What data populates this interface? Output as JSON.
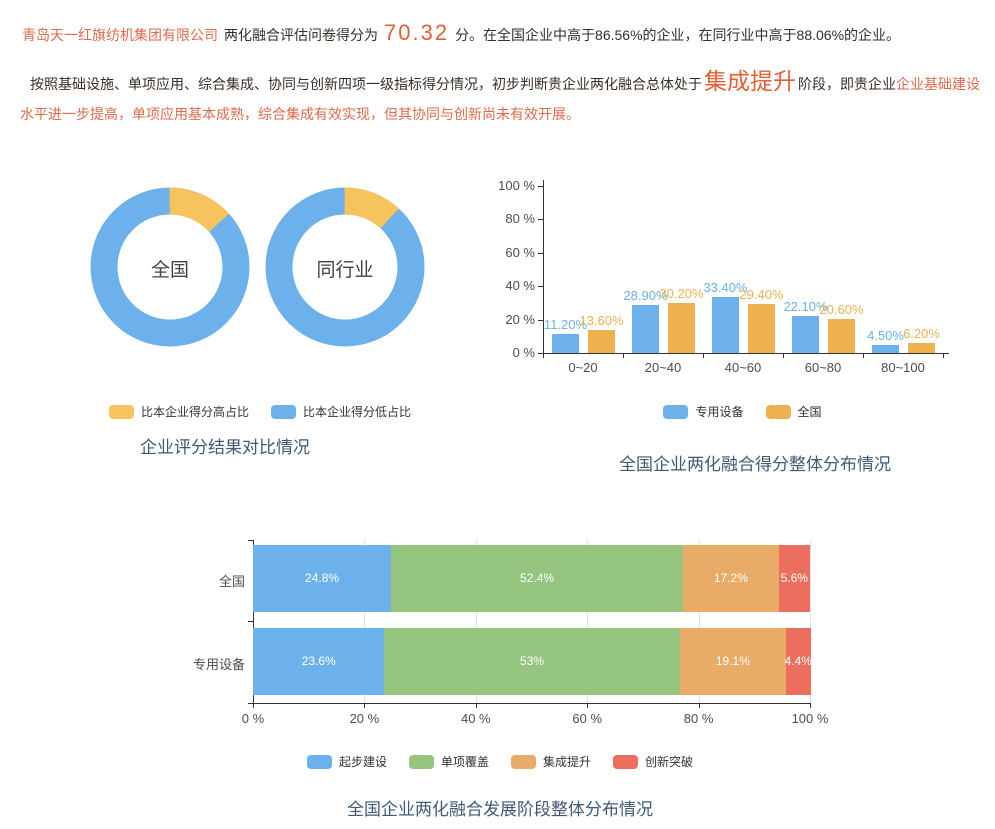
{
  "text": {
    "p1_company": "青岛天一红旗纺机集团有限公司",
    "p1_prefix": "两化融合评估问卷得分为",
    "p1_score": "70.32",
    "p1_suffix": "分。在全国企业中高于86.56%的企业，在同行业中高于88.06%的企业。",
    "p2_part1": "按照基础设施、单项应用、综合集成、协同与创新四项一级指标得分情况，初步判断贵企业两化融合总体处于",
    "p2_stage": "集成提升",
    "p2_part2": "阶段，即贵企业",
    "p2_part3": "企业基础建设水平进一步提高，单项应用基本成熟，综合集成有效实现，但其协同与创新尚未有效开展。"
  },
  "colors": {
    "accent_orange": "#e06a4a",
    "highlight_orange": "#e55f35",
    "dark_text": "#3a2d26",
    "title": "#3e5a78",
    "axis": "#333333",
    "tick_label": "#4d4d4d",
    "blue": "#6cb1ec",
    "yellow": "#f7c35c",
    "bar_orange": "#edb14f",
    "green": "#95c57f",
    "stack_orange": "#e9ac68",
    "red": "#ec6e5f"
  },
  "chart_data": [
    {
      "id": "donut_compare",
      "type": "pie",
      "title": "企业评分结果对比情况",
      "legend_position": "bottom",
      "legend": [
        {
          "label": "比本企业得分高占比",
          "color": "#f7c35c"
        },
        {
          "label": "比本企业得分低占比",
          "color": "#6cb1ec"
        }
      ],
      "donuts": [
        {
          "label": "全国",
          "slices": [
            {
              "name": "比本企业得分高占比",
              "value": 13.44,
              "color": "#f7c35c"
            },
            {
              "name": "比本企业得分低占比",
              "value": 86.56,
              "color": "#6cb1ec"
            }
          ]
        },
        {
          "label": "同行业",
          "slices": [
            {
              "name": "比本企业得分高占比",
              "value": 11.94,
              "color": "#f7c35c"
            },
            {
              "name": "比本企业得分低占比",
              "value": 88.06,
              "color": "#6cb1ec"
            }
          ]
        }
      ]
    },
    {
      "id": "score_distribution",
      "type": "bar",
      "title": "全国企业两化融合得分整体分布情况",
      "categories": [
        "0~20",
        "20~40",
        "40~60",
        "60~80",
        "80~100"
      ],
      "series": [
        {
          "name": "专用设备",
          "color": "#6cb1ec",
          "values": [
            11.2,
            28.9,
            33.4,
            22.1,
            4.5
          ],
          "labels": [
            "11.20%",
            "28.90%",
            "33.40%",
            "22.10%",
            "4.50%"
          ]
        },
        {
          "name": "全国",
          "color": "#edb14f",
          "values": [
            13.6,
            30.2,
            29.4,
            20.6,
            6.2
          ],
          "labels": [
            "13.60%",
            "30.20%",
            "29.40%",
            "20.60%",
            "6.20%"
          ]
        }
      ],
      "y_ticks": [
        "0 %",
        "20 %",
        "40 %",
        "60 %",
        "80 %",
        "100 %"
      ],
      "ylim": [
        0,
        100
      ],
      "grid": false,
      "legend_position": "bottom"
    },
    {
      "id": "stage_distribution",
      "type": "stacked-bar-horizontal",
      "title": "全国企业两化融合发展阶段整体分布情况",
      "categories": [
        "全国",
        "专用设备"
      ],
      "series": [
        {
          "name": "起步建设",
          "color": "#6cb1ec",
          "values": [
            24.8,
            23.6
          ],
          "labels": [
            "24.8%",
            "23.6%"
          ]
        },
        {
          "name": "单项覆盖",
          "color": "#95c57f",
          "values": [
            52.4,
            53
          ],
          "labels": [
            "52.4%",
            "53%"
          ]
        },
        {
          "name": "集成提升",
          "color": "#e9ac68",
          "values": [
            17.2,
            19.1
          ],
          "labels": [
            "17.2%",
            "19.1%"
          ]
        },
        {
          "name": "创新突破",
          "color": "#ec6e5f",
          "values": [
            5.6,
            4.4
          ],
          "labels": [
            "5.6%",
            "4.4%"
          ]
        }
      ],
      "x_ticks": [
        "0 %",
        "20 %",
        "40 %",
        "60 %",
        "80 %",
        "100 %"
      ],
      "xlim": [
        0,
        100
      ],
      "grid": true,
      "legend_position": "bottom"
    }
  ]
}
